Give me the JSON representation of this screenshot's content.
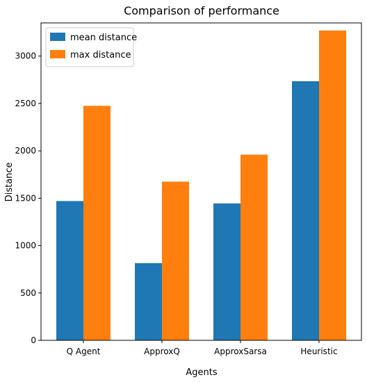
{
  "chart_data": {
    "type": "bar",
    "title": "Comparison of performance",
    "xlabel": "Agents",
    "ylabel": "Distance",
    "categories": [
      "Q Agent",
      "ApproxQ",
      "ApproxSarsa",
      "Heuristic"
    ],
    "series": [
      {
        "name": "mean distance",
        "values": [
          1470,
          815,
          1445,
          2735
        ],
        "color": "#1f77b4"
      },
      {
        "name": "max distance",
        "values": [
          2475,
          1675,
          1960,
          3270
        ],
        "color": "#ff7f0e"
      }
    ],
    "ylim": [
      0,
      3350
    ],
    "yticks": [
      0,
      500,
      1000,
      1500,
      2000,
      2500,
      3000
    ],
    "legend_position": "top-left",
    "grid": false
  }
}
